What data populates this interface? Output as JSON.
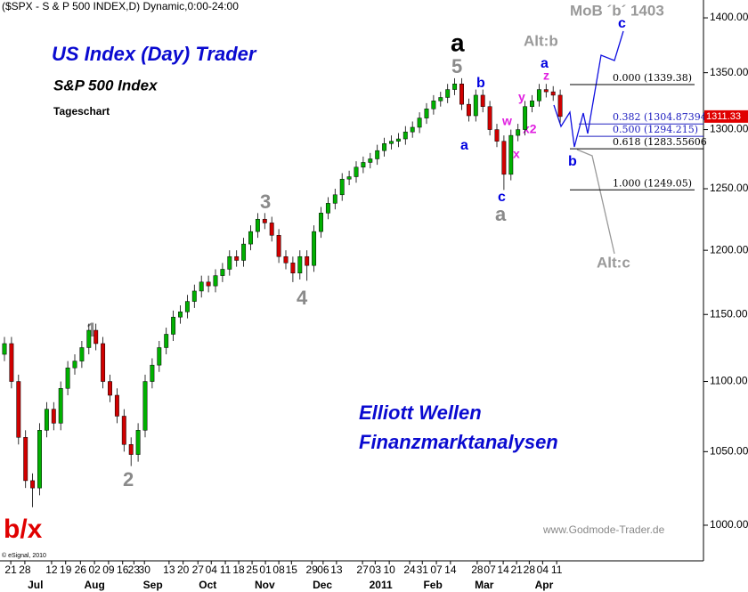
{
  "chart_data": {
    "type": "candlestick",
    "title": "($SPX - S & P 500 INDEX,D) Dynamic,0:00-24:00",
    "log_scale": true,
    "up_color": "#00b000",
    "down_color": "#d00000",
    "open": [
      1120,
      1128,
      1100,
      1060,
      1030,
      1025,
      1065,
      1080,
      1070,
      1095,
      1110,
      1115,
      1125,
      1138,
      1128,
      1100,
      1090,
      1075,
      1055,
      1048,
      1065,
      1100,
      1112,
      1125,
      1135,
      1148,
      1152,
      1160,
      1168,
      1175,
      1172,
      1180,
      1185,
      1195,
      1192,
      1205,
      1215,
      1225,
      1222,
      1212,
      1195,
      1190,
      1182,
      1195,
      1188,
      1215,
      1230,
      1238,
      1245,
      1258,
      1260,
      1268,
      1272,
      1275,
      1282,
      1288,
      1290,
      1292,
      1298,
      1302,
      1310,
      1318,
      1325,
      1328,
      1335,
      1340,
      1322,
      1312,
      1330,
      1320,
      1300,
      1290,
      1262,
      1295,
      1300,
      1320,
      1325,
      1335,
      1333,
      1330
    ],
    "high": [
      1133,
      1133,
      1105,
      1065,
      1035,
      1070,
      1085,
      1085,
      1100,
      1115,
      1120,
      1130,
      1143,
      1143,
      1133,
      1105,
      1095,
      1080,
      1060,
      1070,
      1105,
      1117,
      1130,
      1140,
      1153,
      1157,
      1165,
      1173,
      1180,
      1180,
      1185,
      1190,
      1200,
      1200,
      1210,
      1220,
      1230,
      1230,
      1227,
      1217,
      1200,
      1195,
      1200,
      1200,
      1220,
      1235,
      1243,
      1250,
      1263,
      1265,
      1273,
      1277,
      1280,
      1287,
      1293,
      1295,
      1297,
      1303,
      1307,
      1315,
      1323,
      1330,
      1333,
      1340,
      1345,
      1345,
      1327,
      1335,
      1335,
      1325,
      1305,
      1295,
      1300,
      1305,
      1325,
      1330,
      1340,
      1340,
      1338,
      1335
    ],
    "low": [
      1115,
      1095,
      1055,
      1025,
      1012,
      1020,
      1060,
      1065,
      1065,
      1090,
      1105,
      1110,
      1120,
      1123,
      1095,
      1085,
      1070,
      1050,
      1040,
      1043,
      1060,
      1095,
      1107,
      1120,
      1130,
      1143,
      1147,
      1155,
      1163,
      1167,
      1167,
      1175,
      1180,
      1187,
      1187,
      1200,
      1210,
      1217,
      1207,
      1190,
      1185,
      1175,
      1177,
      1176,
      1183,
      1210,
      1225,
      1233,
      1240,
      1253,
      1255,
      1263,
      1267,
      1270,
      1277,
      1283,
      1285,
      1287,
      1293,
      1297,
      1305,
      1313,
      1320,
      1323,
      1330,
      1317,
      1307,
      1307,
      1315,
      1295,
      1285,
      1249,
      1257,
      1290,
      1295,
      1315,
      1320,
      1328,
      1325,
      1306
    ],
    "close": [
      1128,
      1100,
      1060,
      1030,
      1025,
      1065,
      1080,
      1070,
      1095,
      1110,
      1115,
      1125,
      1138,
      1128,
      1100,
      1090,
      1075,
      1055,
      1048,
      1065,
      1100,
      1112,
      1125,
      1135,
      1148,
      1152,
      1160,
      1168,
      1175,
      1172,
      1180,
      1185,
      1195,
      1192,
      1205,
      1215,
      1225,
      1222,
      1212,
      1195,
      1190,
      1182,
      1195,
      1188,
      1215,
      1230,
      1238,
      1245,
      1258,
      1260,
      1268,
      1272,
      1275,
      1282,
      1288,
      1290,
      1292,
      1298,
      1302,
      1310,
      1318,
      1325,
      1328,
      1335,
      1340,
      1322,
      1312,
      1330,
      1320,
      1300,
      1290,
      1262,
      1295,
      1300,
      1320,
      1325,
      1335,
      1333,
      1330,
      1311.33
    ],
    "ylim": [
      990,
      1415
    ],
    "yticks": [
      {
        "value": 1000,
        "label": "1000.00"
      },
      {
        "value": 1050,
        "label": "1050.00"
      },
      {
        "value": 1100,
        "label": "1100.00"
      },
      {
        "value": 1150,
        "label": "1150.00"
      },
      {
        "value": 1200,
        "label": "1200.00"
      },
      {
        "value": 1250,
        "label": "1250.00"
      },
      {
        "value": 1300,
        "label": "1300.00"
      },
      {
        "value": 1350,
        "label": "1350.00"
      },
      {
        "value": 1400,
        "label": "1400.00"
      }
    ],
    "xticks": [
      {
        "value": 0.9,
        "label": "21"
      },
      {
        "value": 2.9,
        "label": "28"
      },
      {
        "value": 6.7,
        "label": "12"
      },
      {
        "value": 8.7,
        "label": "19"
      },
      {
        "value": 10.8,
        "label": "26"
      },
      {
        "value": 12.8,
        "label": "02"
      },
      {
        "value": 14.8,
        "label": "09"
      },
      {
        "value": 16.8,
        "label": "16"
      },
      {
        "value": 18.4,
        "label": "23"
      },
      {
        "value": 19.9,
        "label": "30"
      },
      {
        "value": 23.4,
        "label": "13"
      },
      {
        "value": 25.4,
        "label": "20"
      },
      {
        "value": 27.5,
        "label": "27"
      },
      {
        "value": 29.4,
        "label": "04"
      },
      {
        "value": 31.4,
        "label": "11"
      },
      {
        "value": 33.3,
        "label": "18"
      },
      {
        "value": 35.2,
        "label": "25"
      },
      {
        "value": 37.1,
        "label": "01"
      },
      {
        "value": 39,
        "label": "08"
      },
      {
        "value": 40.8,
        "label": "15"
      },
      {
        "value": 43.7,
        "label": "29"
      },
      {
        "value": 45.3,
        "label": "06"
      },
      {
        "value": 47.2,
        "label": "13"
      },
      {
        "value": 50.9,
        "label": "27"
      },
      {
        "value": 52.7,
        "label": "03"
      },
      {
        "value": 54.7,
        "label": "10"
      },
      {
        "value": 57.6,
        "label": "24"
      },
      {
        "value": 59.4,
        "label": "31"
      },
      {
        "value": 61.4,
        "label": "07"
      },
      {
        "value": 63.4,
        "label": "14"
      },
      {
        "value": 67.2,
        "label": "28"
      },
      {
        "value": 69,
        "label": "07"
      },
      {
        "value": 70.9,
        "label": "14"
      },
      {
        "value": 72.8,
        "label": "21"
      },
      {
        "value": 74.6,
        "label": "28"
      },
      {
        "value": 76.5,
        "label": "04"
      },
      {
        "value": 78.5,
        "label": "11"
      }
    ],
    "month_ticks": [
      {
        "value": 4.4,
        "label": "Jul"
      },
      {
        "value": 12.8,
        "label": "Aug"
      },
      {
        "value": 21.1,
        "label": "Sep"
      },
      {
        "value": 28.9,
        "label": "Oct"
      },
      {
        "value": 37,
        "label": "Nov"
      },
      {
        "value": 45.2,
        "label": "Dec"
      },
      {
        "value": 53.5,
        "label": "2011"
      },
      {
        "value": 60.9,
        "label": "Feb"
      },
      {
        "value": 68.2,
        "label": "Mar"
      },
      {
        "value": 76.7,
        "label": "Apr"
      }
    ],
    "fib_levels": [
      {
        "value": 1339.38,
        "label": "0.000 (1339.38)"
      },
      {
        "value": 1304.87394,
        "label": "0.382 (1304.87394"
      },
      {
        "value": 1294.215,
        "label": "0.500 (1294.215)"
      },
      {
        "value": 1283.55606,
        "label": "0.618 (1283.55606"
      },
      {
        "value": 1249.05,
        "label": "1.000 (1249.05)"
      }
    ],
    "last_price": {
      "value": 1311.33,
      "label": "1311.33"
    },
    "annotations": [
      "MoB ´b´ 1403",
      "US Index (Day) Trader",
      "S&P 500 Index",
      "Tageschart",
      "Elliott Wellen",
      "Finanzmarktanalysen",
      "www.Godmode-Trader.de",
      "© eSignal, 2010",
      "b/x",
      "1",
      "2",
      "3",
      "4",
      "5",
      "a",
      "a",
      "b",
      "c",
      "a",
      "w",
      "x",
      "x2",
      "y",
      "z",
      "a",
      "Alt:b",
      "b",
      "c",
      "Alt:c"
    ]
  }
}
